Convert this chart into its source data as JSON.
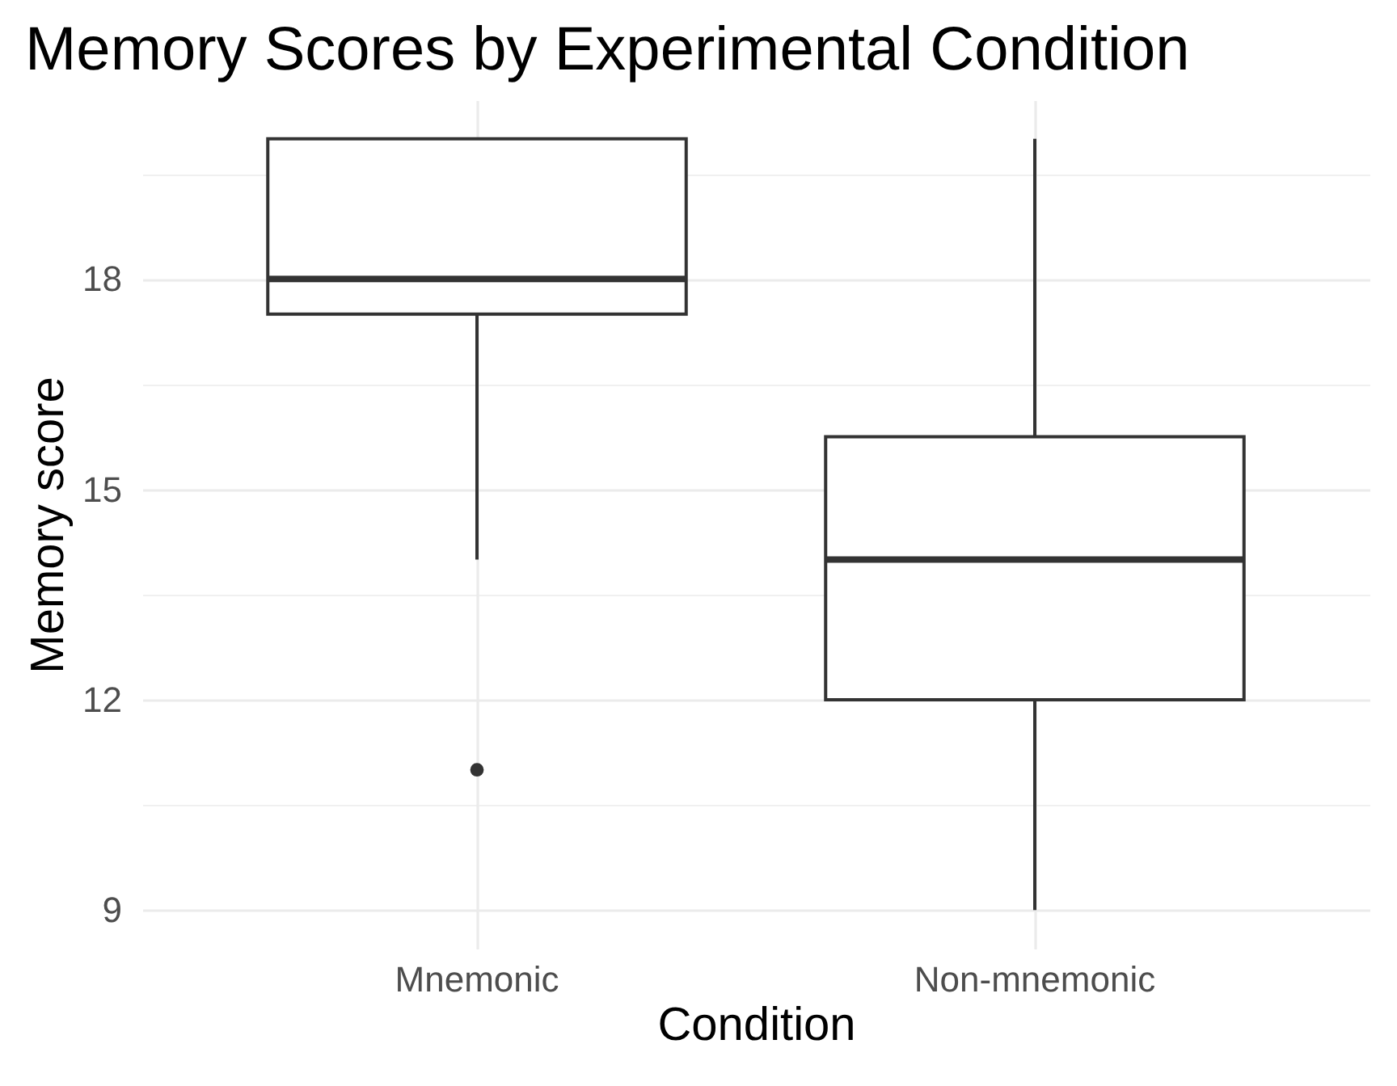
{
  "chart_data": {
    "type": "box",
    "title": "Memory Scores by Experimental Condition",
    "xlabel": "Condition",
    "ylabel": "Memory score",
    "categories": [
      "Mnemonic",
      "Non-mnemonic"
    ],
    "boxes": [
      {
        "low": 14,
        "q1": 17.5,
        "median": 18,
        "q3": 20,
        "high": 20,
        "outliers": [
          11
        ]
      },
      {
        "low": 9,
        "q1": 12,
        "median": 14,
        "q3": 15.75,
        "high": 20
      }
    ],
    "color": "#333333",
    "ylim": [
      8.45,
      20.55
    ],
    "yticks": [
      9,
      {
        "value": 10.5,
        "label": null
      },
      12,
      {
        "value": 13.5,
        "label": null
      },
      15,
      {
        "value": 16.5,
        "label": null
      },
      18,
      {
        "value": 19.5,
        "label": null
      }
    ],
    "grid": true
  }
}
